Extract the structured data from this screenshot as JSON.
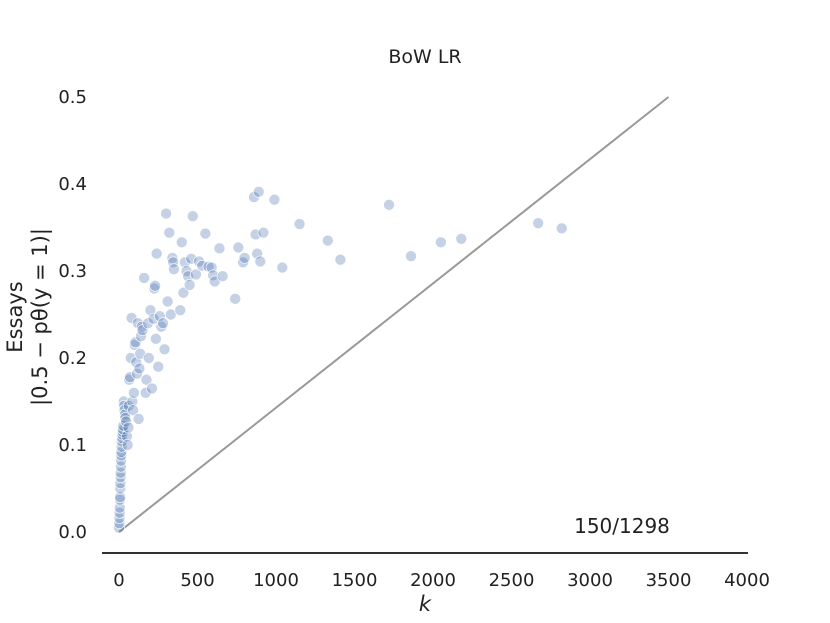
{
  "chart_data": {
    "type": "scatter",
    "title": "BoW LR",
    "xlabel": "k",
    "ylabel_lines": [
      "Essays",
      "|0.5 − pθ(y = 1)|"
    ],
    "xlim": [
      -100,
      4000
    ],
    "ylim": [
      -0.02,
      0.5
    ],
    "x_ticks": [
      0,
      500,
      1000,
      1500,
      2000,
      2500,
      3000,
      3500,
      4000
    ],
    "y_ticks": [
      0.0,
      0.1,
      0.2,
      0.3,
      0.4,
      0.5
    ],
    "x_tick_labels": [
      "0",
      "500",
      "1000",
      "1500",
      "2000",
      "2500",
      "3000",
      "3500",
      "4000"
    ],
    "y_tick_labels": [
      "0.0",
      "0.1",
      "0.2",
      "0.3",
      "0.4",
      "0.5"
    ],
    "annotation": "150/1298",
    "grid": false,
    "reference_line": {
      "x": [
        0,
        3500
      ],
      "y": [
        0,
        0.5
      ],
      "color": "#999999"
    },
    "point_color": "#4c72b0",
    "points": [
      [
        0,
        0.005
      ],
      [
        2,
        0.01
      ],
      [
        3,
        0.016
      ],
      [
        4,
        0.022
      ],
      [
        5,
        0.028
      ],
      [
        6,
        0.037
      ],
      [
        7,
        0.04
      ],
      [
        8,
        0.05
      ],
      [
        9,
        0.056
      ],
      [
        10,
        0.063
      ],
      [
        11,
        0.068
      ],
      [
        12,
        0.075
      ],
      [
        13,
        0.082
      ],
      [
        14,
        0.088
      ],
      [
        15,
        0.092
      ],
      [
        17,
        0.098
      ],
      [
        18,
        0.104
      ],
      [
        20,
        0.108
      ],
      [
        22,
        0.112
      ],
      [
        24,
        0.115
      ],
      [
        26,
        0.118
      ],
      [
        28,
        0.122
      ],
      [
        30,
        0.15
      ],
      [
        32,
        0.145
      ],
      [
        35,
        0.14
      ],
      [
        38,
        0.135
      ],
      [
        40,
        0.131
      ],
      [
        45,
        0.127
      ],
      [
        50,
        0.11
      ],
      [
        55,
        0.1
      ],
      [
        60,
        0.12
      ],
      [
        62,
        0.145
      ],
      [
        65,
        0.175
      ],
      [
        70,
        0.178
      ],
      [
        75,
        0.2
      ],
      [
        80,
        0.246
      ],
      [
        85,
        0.15
      ],
      [
        90,
        0.14
      ],
      [
        95,
        0.16
      ],
      [
        100,
        0.215
      ],
      [
        105,
        0.218
      ],
      [
        110,
        0.195
      ],
      [
        115,
        0.182
      ],
      [
        120,
        0.24
      ],
      [
        125,
        0.13
      ],
      [
        130,
        0.188
      ],
      [
        135,
        0.205
      ],
      [
        140,
        0.225
      ],
      [
        145,
        0.236
      ],
      [
        150,
        0.232
      ],
      [
        160,
        0.292
      ],
      [
        170,
        0.16
      ],
      [
        175,
        0.175
      ],
      [
        185,
        0.24
      ],
      [
        190,
        0.2
      ],
      [
        200,
        0.255
      ],
      [
        210,
        0.165
      ],
      [
        220,
        0.245
      ],
      [
        225,
        0.28
      ],
      [
        230,
        0.283
      ],
      [
        235,
        0.222
      ],
      [
        240,
        0.32
      ],
      [
        250,
        0.19
      ],
      [
        260,
        0.248
      ],
      [
        270,
        0.236
      ],
      [
        280,
        0.24
      ],
      [
        290,
        0.21
      ],
      [
        300,
        0.366
      ],
      [
        310,
        0.265
      ],
      [
        320,
        0.344
      ],
      [
        330,
        0.25
      ],
      [
        340,
        0.315
      ],
      [
        345,
        0.31
      ],
      [
        350,
        0.302
      ],
      [
        390,
        0.255
      ],
      [
        400,
        0.333
      ],
      [
        410,
        0.275
      ],
      [
        420,
        0.31
      ],
      [
        430,
        0.3
      ],
      [
        440,
        0.294
      ],
      [
        450,
        0.284
      ],
      [
        460,
        0.314
      ],
      [
        470,
        0.363
      ],
      [
        490,
        0.296
      ],
      [
        510,
        0.311
      ],
      [
        530,
        0.306
      ],
      [
        550,
        0.343
      ],
      [
        570,
        0.305
      ],
      [
        590,
        0.304
      ],
      [
        600,
        0.295
      ],
      [
        610,
        0.288
      ],
      [
        640,
        0.326
      ],
      [
        660,
        0.294
      ],
      [
        740,
        0.268
      ],
      [
        760,
        0.327
      ],
      [
        790,
        0.31
      ],
      [
        800,
        0.315
      ],
      [
        860,
        0.385
      ],
      [
        870,
        0.342
      ],
      [
        880,
        0.32
      ],
      [
        890,
        0.391
      ],
      [
        900,
        0.311
      ],
      [
        920,
        0.344
      ],
      [
        990,
        0.382
      ],
      [
        1040,
        0.304
      ],
      [
        1150,
        0.354
      ],
      [
        1330,
        0.335
      ],
      [
        1410,
        0.313
      ],
      [
        1720,
        0.376
      ],
      [
        1860,
        0.317
      ],
      [
        2050,
        0.333
      ],
      [
        2180,
        0.337
      ],
      [
        2670,
        0.355
      ],
      [
        2820,
        0.349
      ]
    ]
  }
}
